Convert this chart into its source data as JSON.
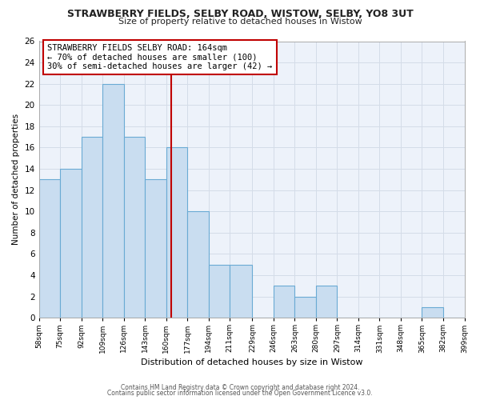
{
  "title": "STRAWBERRY FIELDS, SELBY ROAD, WISTOW, SELBY, YO8 3UT",
  "subtitle": "Size of property relative to detached houses in Wistow",
  "xlabel": "Distribution of detached houses by size in Wistow",
  "ylabel": "Number of detached properties",
  "bar_edges": [
    58,
    75,
    92,
    109,
    126,
    143,
    160,
    177,
    194,
    211,
    229,
    246,
    263,
    280,
    297,
    314,
    331,
    348,
    365,
    382,
    399
  ],
  "bar_heights": [
    13,
    14,
    17,
    22,
    17,
    13,
    16,
    10,
    5,
    5,
    0,
    3,
    2,
    3,
    0,
    0,
    0,
    0,
    1,
    0
  ],
  "bar_color": "#c9ddf0",
  "bar_edge_color": "#6aaad4",
  "reference_line_x": 164,
  "reference_line_color": "#c00000",
  "ylim": [
    0,
    26
  ],
  "yticks": [
    0,
    2,
    4,
    6,
    8,
    10,
    12,
    14,
    16,
    18,
    20,
    22,
    24,
    26
  ],
  "xtick_labels": [
    "58sqm",
    "75sqm",
    "92sqm",
    "109sqm",
    "126sqm",
    "143sqm",
    "160sqm",
    "177sqm",
    "194sqm",
    "211sqm",
    "229sqm",
    "246sqm",
    "263sqm",
    "280sqm",
    "297sqm",
    "314sqm",
    "331sqm",
    "348sqm",
    "365sqm",
    "382sqm",
    "399sqm"
  ],
  "annotation_box_text": "STRAWBERRY FIELDS SELBY ROAD: 164sqm\n← 70% of detached houses are smaller (100)\n30% of semi-detached houses are larger (42) →",
  "footer_line1": "Contains HM Land Registry data © Crown copyright and database right 2024.",
  "footer_line2": "Contains public sector information licensed under the Open Government Licence v3.0.",
  "grid_color": "#d4dce8",
  "background_color": "#ffffff",
  "plot_bg_color": "#edf2fa"
}
